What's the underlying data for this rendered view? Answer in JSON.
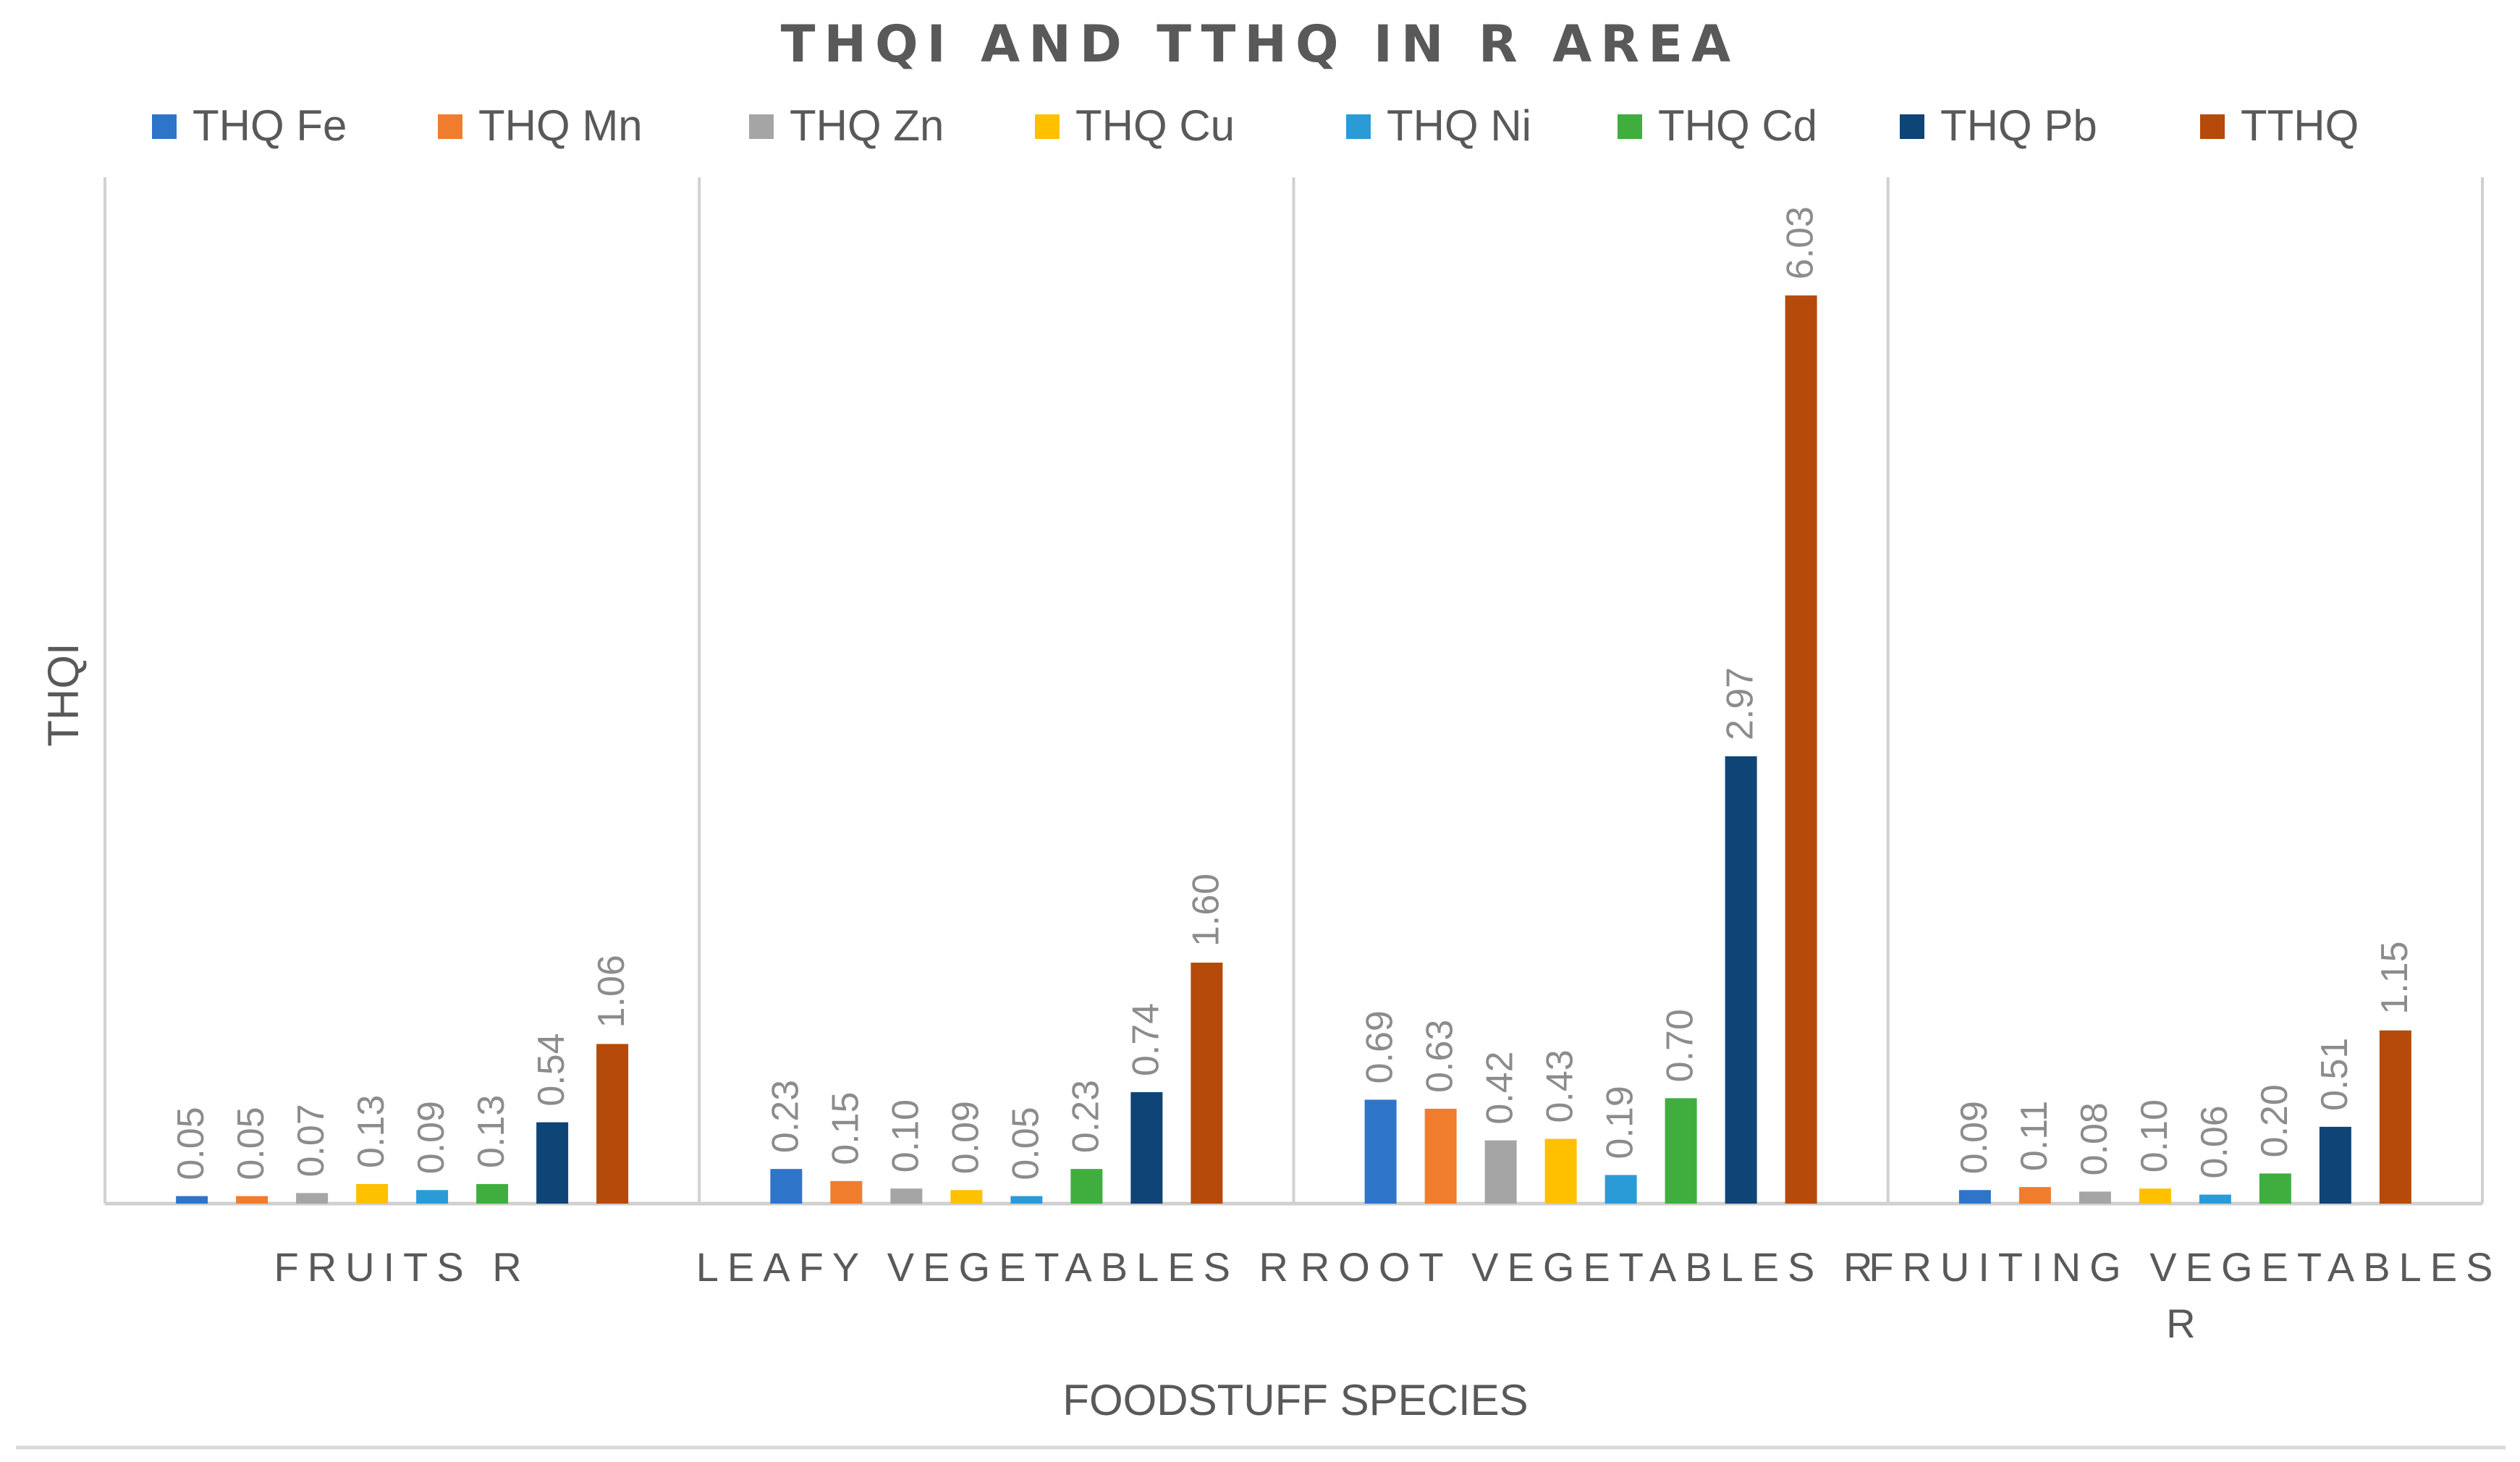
{
  "chart_data": {
    "type": "bar",
    "title": "THQI AND TTHQ IN R AREA",
    "xlabel": "FOODSTUFF SPECIES",
    "ylabel": "THQI",
    "ylim": [
      0,
      6.8
    ],
    "grid": false,
    "legend_position": "top",
    "categories": [
      [
        "FRUITS R"
      ],
      [
        "LEAFY VEGETABLES R"
      ],
      [
        "ROOT VEGETABLES R"
      ],
      [
        "FRUITING VEGETABLES",
        "R"
      ]
    ],
    "series": [
      {
        "name": "THQ Fe",
        "color": "#2e75c9",
        "values": [
          0.05,
          0.23,
          0.69,
          0.09
        ],
        "labels": [
          "0.05",
          "0.23",
          "0.69",
          "0.09"
        ]
      },
      {
        "name": "THQ Mn",
        "color": "#f07d2e",
        "values": [
          0.05,
          0.15,
          0.63,
          0.11
        ],
        "labels": [
          "0.05",
          "0.15",
          "0.63",
          "0.11"
        ]
      },
      {
        "name": "THQ Zn",
        "color": "#a5a5a5",
        "values": [
          0.07,
          0.1,
          0.42,
          0.08
        ],
        "labels": [
          "0.07",
          "0.10",
          "0.42",
          "0.08"
        ]
      },
      {
        "name": "THQ Cu",
        "color": "#ffc000",
        "values": [
          0.13,
          0.09,
          0.43,
          0.1
        ],
        "labels": [
          "0.13",
          "0.09",
          "0.43",
          "0.10"
        ]
      },
      {
        "name": "THQ Ni",
        "color": "#2b9bd8",
        "values": [
          0.09,
          0.05,
          0.19,
          0.06
        ],
        "labels": [
          "0.09",
          "0.05",
          "0.19",
          "0.06"
        ]
      },
      {
        "name": "THQ Cd",
        "color": "#3fae3f",
        "values": [
          0.13,
          0.23,
          0.7,
          0.2
        ],
        "labels": [
          "0.13",
          "0.23",
          "0.70",
          "0.20"
        ]
      },
      {
        "name": "THQ Pb",
        "color": "#0f4477",
        "values": [
          0.54,
          0.74,
          2.97,
          0.51
        ],
        "labels": [
          "0.54",
          "0.74",
          "2.97",
          "0.51"
        ]
      },
      {
        "name": "TTHQ",
        "color": "#b54a0b",
        "values": [
          1.06,
          1.6,
          6.03,
          1.15
        ],
        "labels": [
          "1.06",
          "1.60",
          "6.03",
          "1.15"
        ]
      }
    ]
  }
}
